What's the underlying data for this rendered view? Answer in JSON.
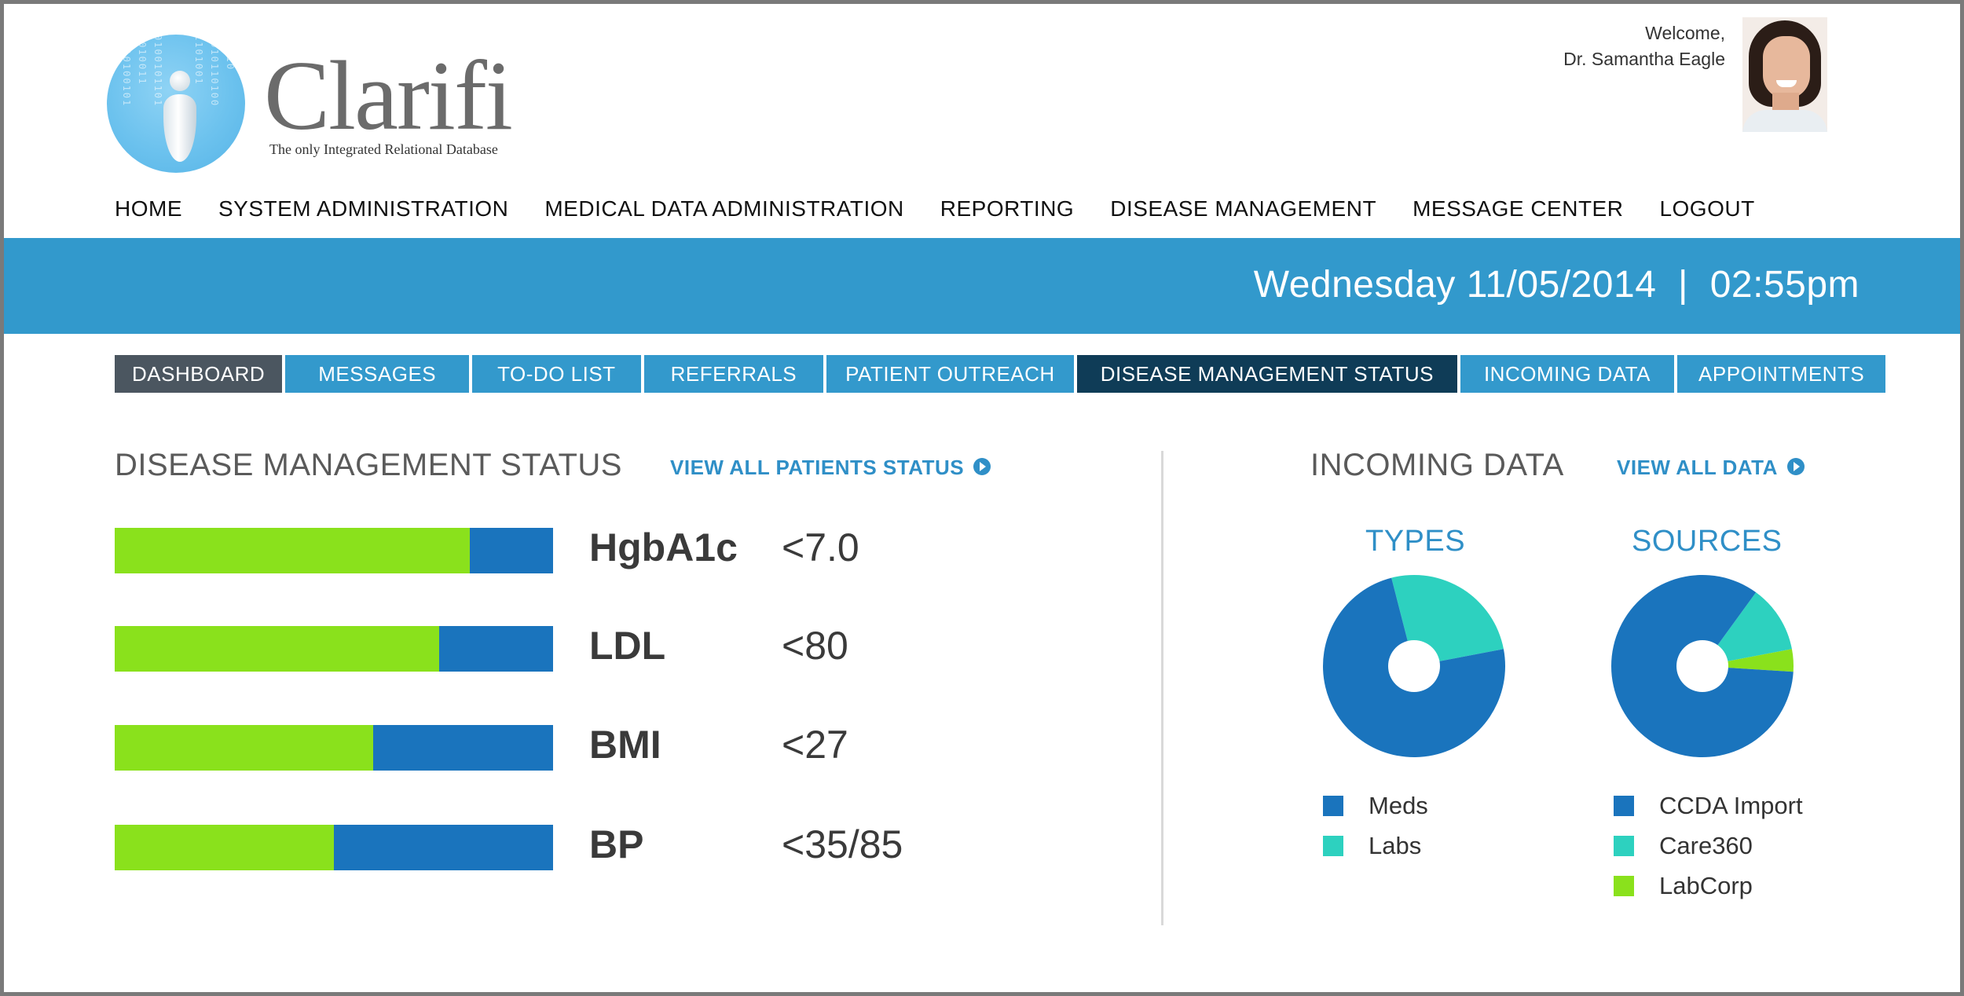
{
  "brand": {
    "name": "Clarifi",
    "tagline": "The only Integrated Relational Database"
  },
  "user": {
    "welcome": "Welcome,",
    "name": "Dr. Samantha Eagle"
  },
  "main_nav": [
    "HOME",
    "SYSTEM ADMINISTRATION",
    "MEDICAL DATA ADMINISTRATION",
    "REPORTING",
    "DISEASE MANAGEMENT",
    "MESSAGE CENTER",
    "LOGOUT"
  ],
  "datetime": "Wednesday 11/05/2014  |  02:55pm",
  "tabs": [
    "DASHBOARD",
    "MESSAGES",
    "TO-DO LIST",
    "REFERRALS",
    "PATIENT OUTREACH",
    "DISEASE MANAGEMENT STATUS",
    "INCOMING DATA",
    "APPOINTMENTS"
  ],
  "active_tab": "DISEASE MANAGEMENT STATUS",
  "disease_status": {
    "title": "DISEASE MANAGEMENT STATUS",
    "link": "VIEW ALL PATIENTS STATUS",
    "metrics": [
      {
        "name": "HgbA1c",
        "target": "<7.0",
        "fraction": 0.81
      },
      {
        "name": "LDL",
        "target": "<80",
        "fraction": 0.74
      },
      {
        "name": "BMI",
        "target": "<27",
        "fraction": 0.59
      },
      {
        "name": "BP",
        "target": "<35/85",
        "fraction": 0.5
      }
    ]
  },
  "incoming": {
    "title": "INCOMING DATA",
    "link": "VIEW ALL DATA"
  },
  "colors": {
    "primary_blue": "#1a74bd",
    "band_blue": "#3299cc",
    "green": "#8ae11c",
    "teal": "#2dd1bf",
    "active_tab": "#0f3c57",
    "dashboard_tab": "#4b5660"
  },
  "chart_data": [
    {
      "type": "pie",
      "title": "TYPES",
      "categories": [
        "Meds",
        "Labs"
      ],
      "values": [
        74,
        26
      ],
      "colors": [
        "#1a74bd",
        "#2dd1bf"
      ]
    },
    {
      "type": "pie",
      "title": "SOURCES",
      "categories": [
        "CCDA Import",
        "Care360",
        "LabCorp"
      ],
      "values": [
        84,
        12,
        4
      ],
      "colors": [
        "#1a74bd",
        "#2dd1bf",
        "#8ae11c"
      ]
    }
  ]
}
